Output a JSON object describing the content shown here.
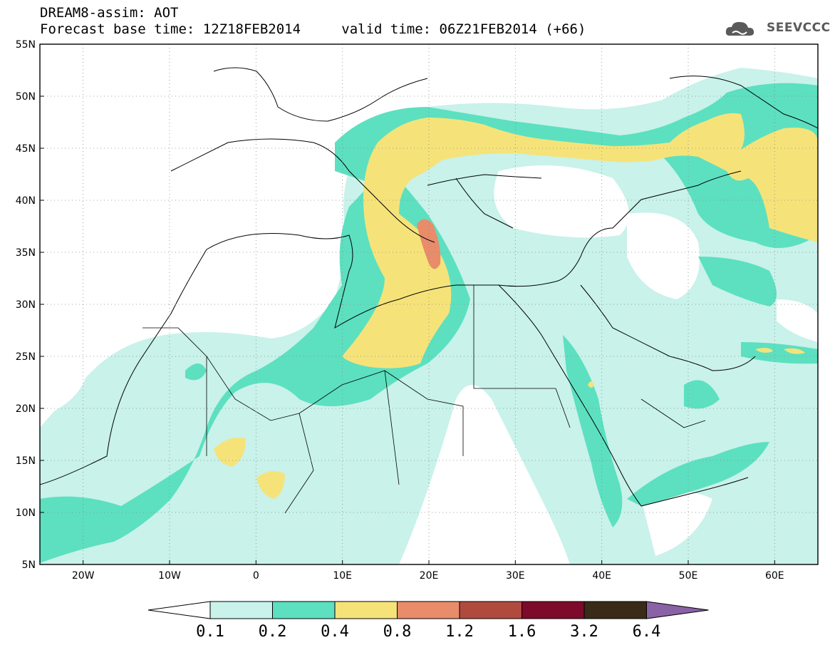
{
  "header": {
    "title": "DREAM8-assim: AOT",
    "base_time": "Forecast base time: 12Z18FEB2014",
    "valid_time": "valid time: 06Z21FEB2014 (+66)"
  },
  "logo": {
    "text": "SEEVCCC",
    "icon": "cloud-icon"
  },
  "map": {
    "lon_ticks": [
      "20W",
      "10W",
      "0",
      "10E",
      "20E",
      "30E",
      "40E",
      "50E",
      "60E"
    ],
    "lat_ticks": [
      "55N",
      "50N",
      "45N",
      "40N",
      "35N",
      "30N",
      "25N",
      "20N",
      "15N",
      "10N",
      "5N"
    ],
    "lon_range": [
      -25,
      65
    ],
    "lat_range": [
      5,
      55
    ]
  },
  "colorbar": {
    "labels": [
      "0.1",
      "0.2",
      "0.4",
      "0.8",
      "1.2",
      "1.6",
      "3.2",
      "6.4"
    ],
    "colors": [
      "#ffffff",
      "#c8f2ea",
      "#5ce0c0",
      "#f5e37a",
      "#e98c6a",
      "#b04a3e",
      "#7d0a2a",
      "#3a2a18",
      "#8a62a6"
    ]
  },
  "colors": {
    "c01": "#c8f2ea",
    "c02": "#5ce0c0",
    "c04": "#f5e37a",
    "c08": "#e98c6a"
  }
}
